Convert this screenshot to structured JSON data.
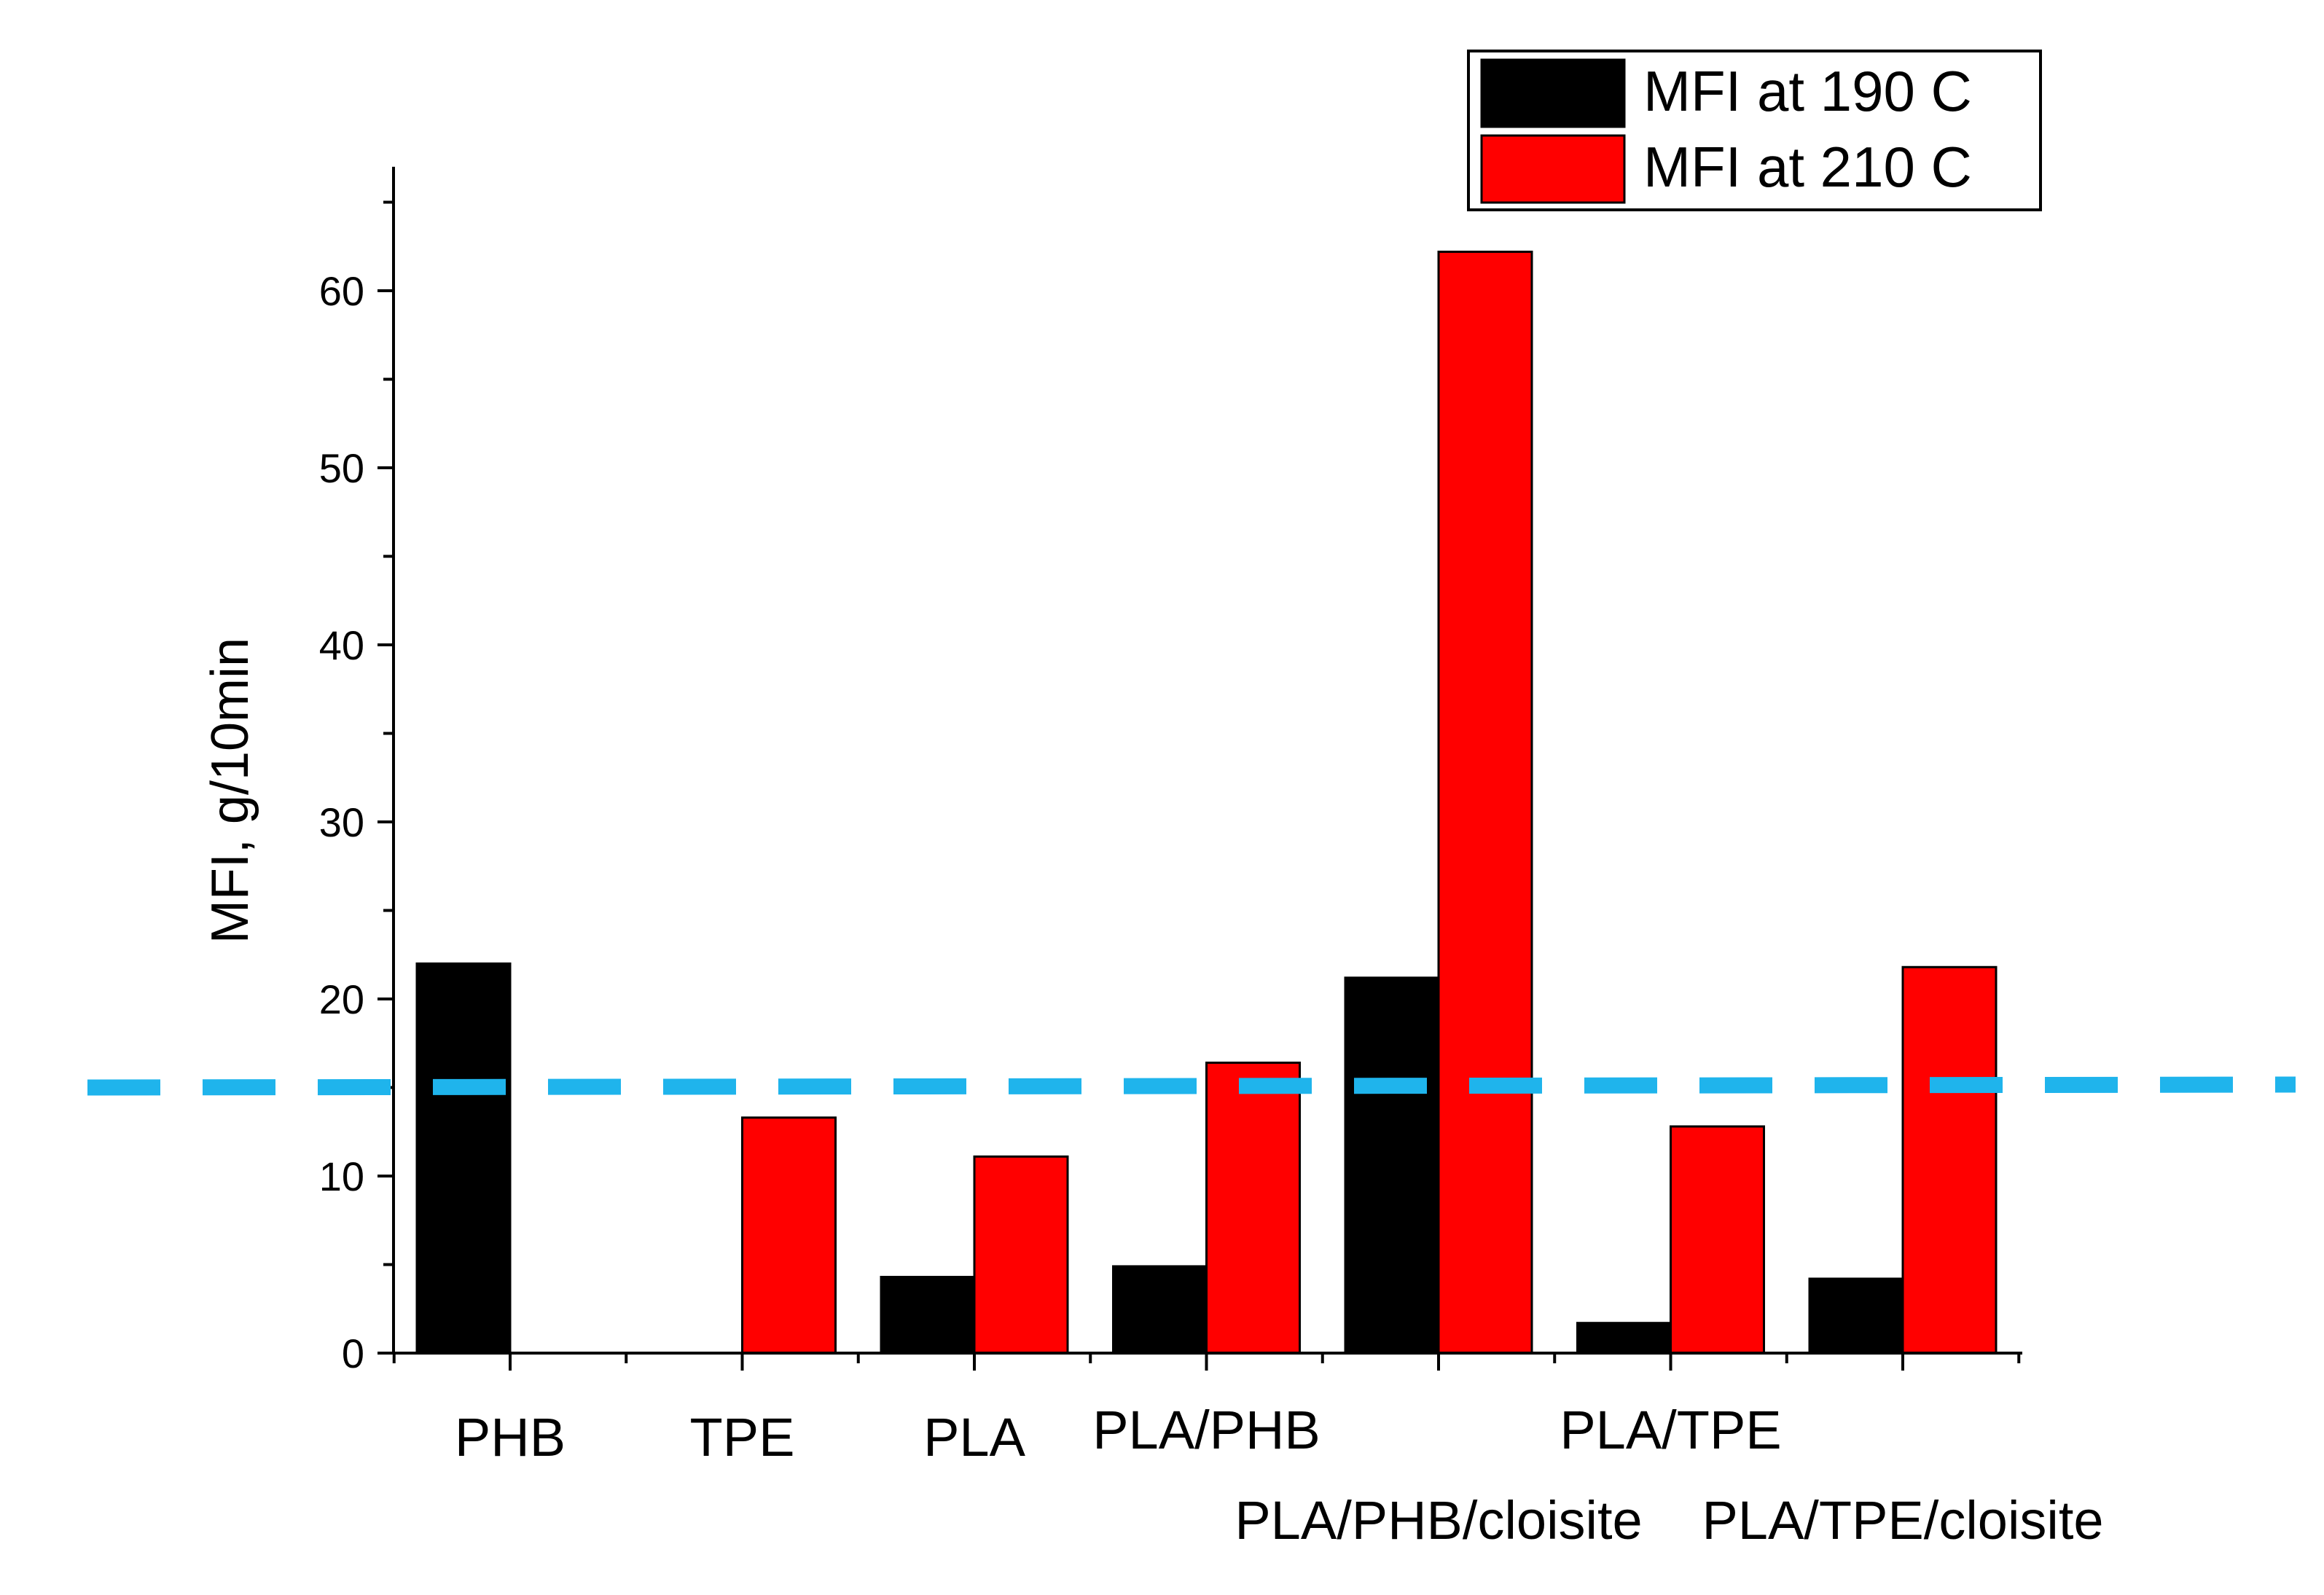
{
  "chart_data": {
    "type": "bar",
    "categories": [
      "PHB",
      "TPE",
      "PLA",
      "PLA/PHB",
      "PLA/PHB/cloisite",
      "PLA/TPE",
      "PLA/TPE/cloisite"
    ],
    "series": [
      {
        "name": "MFI at 190 C",
        "color": "#000000",
        "values": [
          22.0,
          0,
          4.3,
          4.9,
          21.2,
          1.7,
          4.2
        ]
      },
      {
        "name": "MFI at 210 C",
        "color": "#ff0000",
        "values": [
          0,
          13.3,
          11.1,
          16.4,
          62.2,
          12.8,
          21.8
        ]
      }
    ],
    "title": "",
    "xlabel": "",
    "ylabel": "MFI, g/10min",
    "ylim": [
      0,
      67
    ],
    "yticks": [
      0,
      10,
      20,
      30,
      40,
      50,
      60
    ],
    "reference_line": {
      "y": 15,
      "color": "#1fb4ec",
      "style": "dashed"
    },
    "legend": {
      "position": "top-right"
    },
    "grid": false
  }
}
